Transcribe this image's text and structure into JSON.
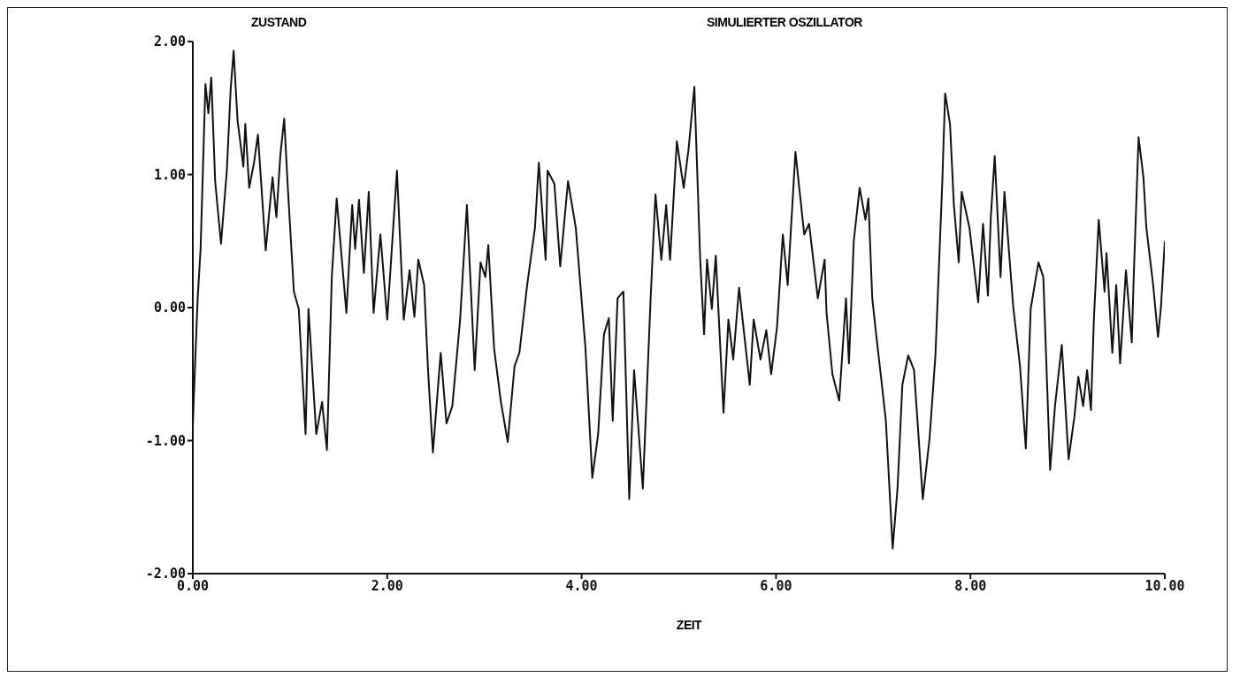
{
  "chart_data": {
    "type": "line",
    "title": "SIMULIERTER OSZILLATOR",
    "xlabel": "ZEIT",
    "ylabel": "ZUSTAND",
    "xlim": [
      0,
      10
    ],
    "ylim": [
      -2,
      2
    ],
    "xticks": [
      {
        "value": 0,
        "label": "0.00"
      },
      {
        "value": 2,
        "label": "2.00"
      },
      {
        "value": 4,
        "label": "4.00"
      },
      {
        "value": 6,
        "label": "6.00"
      },
      {
        "value": 8,
        "label": "8.00"
      },
      {
        "value": 10,
        "label": "10.00"
      }
    ],
    "yticks": [
      {
        "value": -2,
        "label": "-2.00"
      },
      {
        "value": -1,
        "label": "-1.00"
      },
      {
        "value": 0,
        "label": "0.00"
      },
      {
        "value": 1,
        "label": "1.00"
      },
      {
        "value": 2,
        "label": "2.00"
      }
    ],
    "grid": false,
    "marker": "none",
    "line_style": "solid",
    "series": [
      {
        "color": "#111111",
        "x": [
          0,
          0.01,
          0.05,
          0.08,
          0.13,
          0.16,
          0.19,
          0.23,
          0.29,
          0.35,
          0.39,
          0.42,
          0.46,
          0.52,
          0.54,
          0.58,
          0.63,
          0.67,
          0.75,
          0.82,
          0.86,
          0.9,
          0.94,
          0.98,
          1.04,
          1.09,
          1.16,
          1.19,
          1.27,
          1.33,
          1.38,
          1.43,
          1.48,
          1.58,
          1.64,
          1.67,
          1.71,
          1.76,
          1.81,
          1.86,
          1.93,
          2.0,
          2.1,
          2.17,
          2.23,
          2.28,
          2.32,
          2.38,
          2.42,
          2.47,
          2.55,
          2.61,
          2.67,
          2.75,
          2.82,
          2.9,
          2.96,
          3.01,
          3.04,
          3.1,
          3.17,
          3.24,
          3.31,
          3.36,
          3.44,
          3.52,
          3.56,
          3.63,
          3.65,
          3.72,
          3.78,
          3.86,
          3.94,
          4.04,
          4.11,
          4.17,
          4.23,
          4.28,
          4.32,
          4.37,
          4.43,
          4.49,
          4.54,
          4.63,
          4.71,
          4.76,
          4.82,
          4.87,
          4.91,
          4.98,
          5.05,
          5.1,
          5.16,
          5.22,
          5.26,
          5.29,
          5.34,
          5.38,
          5.46,
          5.51,
          5.56,
          5.62,
          5.73,
          5.77,
          5.84,
          5.9,
          5.95,
          6.01,
          6.07,
          6.12,
          6.2,
          6.29,
          6.34,
          6.43,
          6.5,
          6.52,
          6.58,
          6.65,
          6.72,
          6.75,
          6.8,
          6.86,
          6.92,
          6.95,
          6.99,
          7.03,
          7.08,
          7.13,
          7.2,
          7.25,
          7.3,
          7.36,
          7.42,
          7.51,
          7.58,
          7.64,
          7.71,
          7.74,
          7.79,
          7.83,
          7.88,
          7.91,
          7.99,
          8.08,
          8.13,
          8.18,
          8.21,
          8.25,
          8.31,
          8.35,
          8.44,
          8.51,
          8.57,
          8.62,
          8.7,
          8.75,
          8.82,
          8.87,
          8.94,
          9.01,
          9.07,
          9.11,
          9.16,
          9.2,
          9.24,
          9.27,
          9.32,
          9.38,
          9.4,
          9.46,
          9.5,
          9.54,
          9.6,
          9.66,
          9.68,
          9.73,
          9.78,
          9.81,
          9.88,
          9.93,
          9.96,
          10.0
        ],
        "values": [
          -0.9,
          -0.68,
          0.07,
          0.44,
          1.68,
          1.46,
          1.73,
          0.95,
          0.48,
          1.03,
          1.65,
          1.93,
          1.41,
          1.06,
          1.38,
          0.9,
          1.09,
          1.3,
          0.43,
          0.98,
          0.68,
          1.14,
          1.42,
          0.87,
          0.12,
          -0.01,
          -0.95,
          -0.01,
          -0.95,
          -0.71,
          -1.07,
          0.23,
          0.82,
          -0.04,
          0.77,
          0.44,
          0.81,
          0.26,
          0.87,
          -0.04,
          0.55,
          -0.09,
          1.03,
          -0.09,
          0.28,
          -0.07,
          0.36,
          0.17,
          -0.47,
          -1.09,
          -0.34,
          -0.87,
          -0.74,
          -0.09,
          0.77,
          -0.47,
          0.34,
          0.23,
          0.47,
          -0.31,
          -0.71,
          -1.01,
          -0.44,
          -0.34,
          0.17,
          0.6,
          1.09,
          0.36,
          1.03,
          0.93,
          0.31,
          0.95,
          0.6,
          -0.31,
          -1.28,
          -0.95,
          -0.2,
          -0.08,
          -0.85,
          0.07,
          0.12,
          -1.44,
          -0.47,
          -1.36,
          0.07,
          0.85,
          0.36,
          0.77,
          0.36,
          1.25,
          0.9,
          1.19,
          1.66,
          0.36,
          -0.2,
          0.36,
          -0.01,
          0.39,
          -0.79,
          -0.09,
          -0.39,
          0.15,
          -0.58,
          -0.09,
          -0.39,
          -0.17,
          -0.5,
          -0.15,
          0.55,
          0.17,
          1.17,
          0.55,
          0.63,
          0.07,
          0.36,
          -0.04,
          -0.5,
          -0.7,
          0.07,
          -0.42,
          0.5,
          0.9,
          0.66,
          0.82,
          0.07,
          -0.2,
          -0.52,
          -0.85,
          -1.81,
          -1.36,
          -0.58,
          -0.36,
          -0.47,
          -1.44,
          -0.98,
          -0.36,
          0.93,
          1.61,
          1.38,
          0.77,
          0.34,
          0.87,
          0.6,
          0.04,
          0.63,
          0.09,
          0.68,
          1.14,
          0.23,
          0.87,
          0.01,
          -0.44,
          -1.06,
          -0.01,
          0.34,
          0.23,
          -1.22,
          -0.74,
          -0.28,
          -1.14,
          -0.82,
          -0.52,
          -0.74,
          -0.47,
          -0.77,
          -0.09,
          0.66,
          0.12,
          0.41,
          -0.34,
          0.17,
          -0.42,
          0.28,
          -0.26,
          0.23,
          1.28,
          0.98,
          0.6,
          0.17,
          -0.22,
          0.0,
          0.5
        ]
      }
    ]
  }
}
